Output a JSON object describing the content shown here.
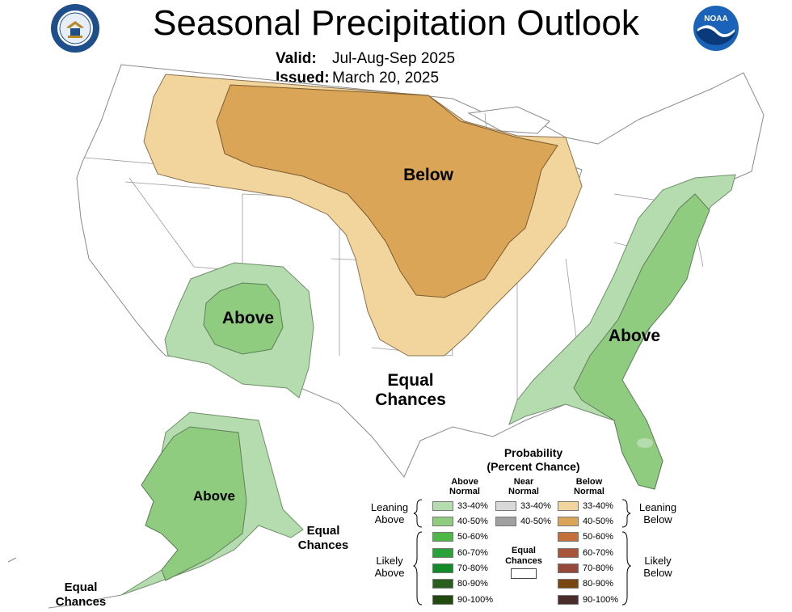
{
  "header": {
    "title": "Seasonal Precipitation Outlook",
    "valid_label": "Valid:",
    "valid_value": "Jul-Aug-Sep 2025",
    "issued_label": "Issued:",
    "issued_value": "March 20, 2025"
  },
  "logos": {
    "left": "department-of-commerce-seal",
    "right": "noaa-logo",
    "noaa_text": "NOAA"
  },
  "map_labels": {
    "below_conus": "Below",
    "above_southwest": "Above",
    "above_east": "Above",
    "equal_chances_conus": [
      "Equal",
      "Chances"
    ],
    "above_alaska": "Above",
    "equal_chances_alaska_se": [
      "Equal",
      "Chances"
    ],
    "equal_chances_alaska_w": [
      "Equal",
      "Chances"
    ]
  },
  "colors": {
    "above_33_40": "#b5dcae",
    "above_40_50": "#8fcc80",
    "below_33_40": "#f2d59c",
    "below_40_50": "#daa556",
    "near_33_40": "#d9d9d9",
    "near_40_50": "#a0a0a0",
    "above_50_60": "#4db848",
    "above_60_70": "#2aa23a",
    "above_70_80": "#138a2a",
    "above_80_90": "#2a5e1e",
    "above_90_100": "#224a10",
    "below_50_60": "#c26f3a",
    "below_60_70": "#a9553a",
    "below_70_80": "#94493a",
    "below_80_90": "#7a4610",
    "below_90_100": "#4b2c2c"
  },
  "legend": {
    "title_line1": "Probability",
    "title_line2": "(Percent Chance)",
    "col_above": [
      "Above",
      "Normal"
    ],
    "col_near": [
      "Near",
      "Normal"
    ],
    "col_below": [
      "Below",
      "Normal"
    ],
    "above_pcts": [
      "33-40%",
      "40-50%",
      "50-60%",
      "60-70%",
      "70-80%",
      "80-90%",
      "90-100%"
    ],
    "near_pcts": [
      "33-40%",
      "40-50%"
    ],
    "below_pcts": [
      "33-40%",
      "40-50%",
      "50-60%",
      "60-70%",
      "70-80%",
      "80-90%",
      "90-100%"
    ],
    "leaning_above": [
      "Leaning",
      "Above"
    ],
    "likely_above": [
      "Likely",
      "Above"
    ],
    "leaning_below": [
      "Leaning",
      "Below"
    ],
    "likely_below": [
      "Likely",
      "Below"
    ],
    "equal_chances": [
      "Equal",
      "Chances"
    ]
  }
}
